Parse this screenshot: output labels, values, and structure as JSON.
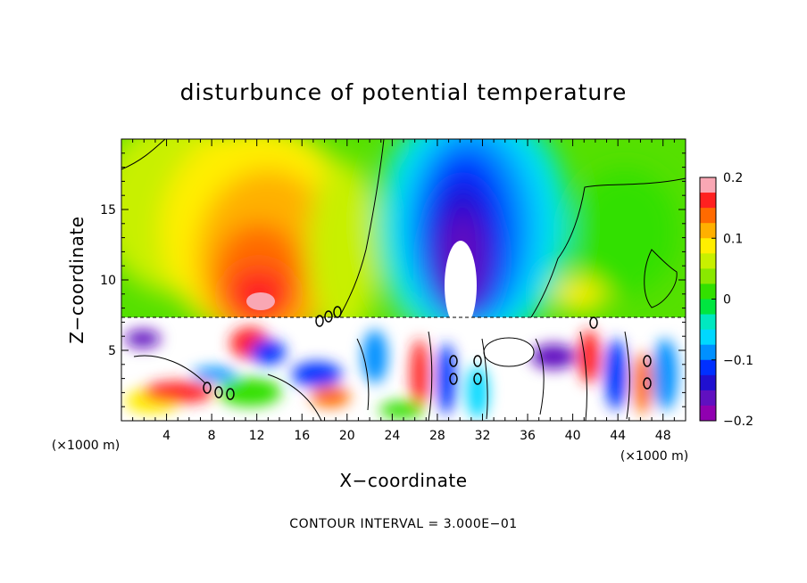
{
  "chart_data": {
    "type": "heatmap",
    "title": "disturbunce of potential temperature",
    "xlabel": "X−coordinate",
    "ylabel": "Z−coordinate",
    "x_unit_left": "(×1000 m)",
    "x_unit_right": "(×1000 m)",
    "footer": "CONTOUR INTERVAL = 3.000E−01",
    "xlim": [
      0,
      50
    ],
    "ylim": [
      0,
      20
    ],
    "x_ticks": [
      4,
      8,
      12,
      16,
      20,
      24,
      28,
      32,
      36,
      40,
      44,
      48
    ],
    "y_ticks": [
      5,
      10,
      15
    ],
    "colorbar": {
      "min": -0.2,
      "max": 0.2,
      "tick_values": [
        0.2,
        0.1,
        0,
        -0.1,
        -0.2
      ],
      "tick_labels": [
        "0.2",
        "0.1",
        "0",
        "−0.1",
        "−0.2"
      ],
      "colors": [
        "#f9a7b4",
        "#ff2020",
        "#ff6a00",
        "#ffb000",
        "#ffee00",
        "#c8f000",
        "#8ae800",
        "#33e000",
        "#00e640",
        "#00e8c0",
        "#00d8ff",
        "#0090ff",
        "#0030ff",
        "#2010d0",
        "#6010c0",
        "#9000b0"
      ]
    },
    "features": [
      {
        "label": "warm anomaly",
        "x": 13,
        "z": 12,
        "value": 0.15
      },
      {
        "label": "cold anomaly",
        "x": 30.5,
        "z": 13,
        "value": -0.2
      },
      {
        "label": "turbulent layer top",
        "z": 7.3
      }
    ]
  }
}
